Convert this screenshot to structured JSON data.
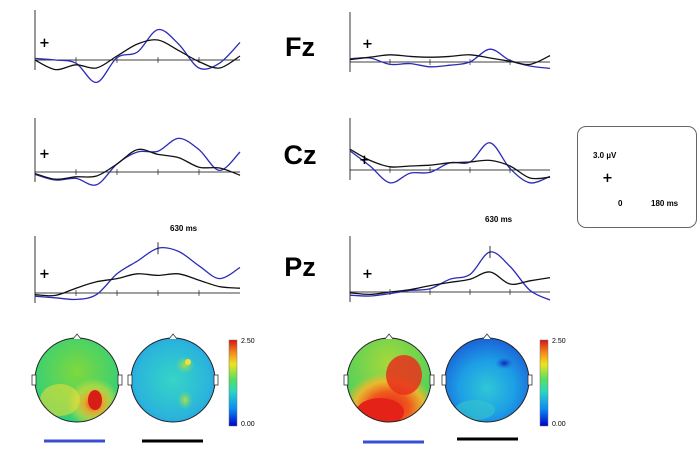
{
  "electrodes": [
    "Fz",
    "Cz",
    "Pz"
  ],
  "calibration": {
    "amplitude_label": "3.0 µV",
    "x_start": "0",
    "x_end": "180 ms",
    "marker": "+"
  },
  "annotations": {
    "left_peak": "630 ms",
    "right_peak": "630 ms"
  },
  "colorbar": {
    "left": {
      "max": "2.50",
      "min": "0.00"
    },
    "right": {
      "max": "2.50",
      "min": "0.00"
    }
  },
  "colors": {
    "blue_series": "#2b2bb8",
    "black_series": "#111111",
    "underline_blue": "#3a4fd0",
    "underline_black": "#000000"
  },
  "chart_data": [
    {
      "type": "line",
      "panel": "left",
      "electrode": "Fz",
      "x": [
        0,
        10,
        20,
        30,
        40,
        50,
        60,
        70,
        80,
        90,
        100
      ],
      "series": [
        {
          "color": "blue",
          "values": [
            0.2,
            0.0,
            -0.4,
            -2.8,
            0.3,
            1.0,
            3.8,
            2.0,
            -1.0,
            -0.4,
            2.2
          ]
        },
        {
          "color": "black",
          "values": [
            0.0,
            -1.2,
            -0.6,
            -1.0,
            0.5,
            2.0,
            2.5,
            1.2,
            -0.2,
            -1.0,
            0.5
          ]
        }
      ]
    },
    {
      "type": "line",
      "panel": "left",
      "electrode": "Cz",
      "x": [
        0,
        10,
        20,
        30,
        40,
        50,
        60,
        70,
        80,
        90,
        100
      ],
      "series": [
        {
          "color": "blue",
          "values": [
            -0.3,
            -1.0,
            -0.8,
            -1.6,
            1.0,
            2.5,
            2.6,
            4.2,
            2.8,
            0.2,
            2.5
          ]
        },
        {
          "color": "black",
          "values": [
            -0.2,
            -0.9,
            -0.6,
            -0.5,
            1.0,
            2.8,
            2.2,
            1.8,
            0.6,
            0.5,
            -0.4
          ]
        }
      ]
    },
    {
      "type": "line",
      "panel": "left",
      "electrode": "Pz",
      "x": [
        0,
        10,
        20,
        30,
        40,
        50,
        60,
        70,
        80,
        90,
        100
      ],
      "series": [
        {
          "color": "blue",
          "values": [
            -0.4,
            -0.6,
            -0.8,
            -0.2,
            2.4,
            4.0,
            5.6,
            5.2,
            3.4,
            1.8,
            3.2
          ]
        },
        {
          "color": "black",
          "values": [
            -0.2,
            -0.3,
            0.6,
            1.4,
            1.8,
            2.4,
            2.2,
            2.4,
            1.6,
            0.8,
            0.6
          ]
        }
      ]
    },
    {
      "type": "line",
      "panel": "right",
      "electrode": "Fz",
      "x": [
        0,
        10,
        20,
        30,
        40,
        50,
        60,
        70,
        80,
        90,
        100
      ],
      "series": [
        {
          "color": "blue",
          "values": [
            0.4,
            0.5,
            -0.3,
            -0.2,
            -0.6,
            -0.4,
            0.0,
            1.6,
            0.2,
            -0.5,
            -0.8
          ]
        },
        {
          "color": "black",
          "values": [
            0.3,
            0.6,
            0.9,
            0.7,
            0.6,
            0.7,
            0.9,
            0.5,
            0.1,
            -0.3,
            0.8
          ]
        }
      ]
    },
    {
      "type": "line",
      "panel": "right",
      "electrode": "Cz",
      "x": [
        0,
        10,
        20,
        30,
        40,
        50,
        60,
        70,
        80,
        90,
        100
      ],
      "series": [
        {
          "color": "blue",
          "values": [
            2.4,
            0.5,
            -1.6,
            -0.4,
            -0.3,
            0.9,
            1.0,
            3.4,
            0.2,
            -1.6,
            -0.8
          ]
        },
        {
          "color": "black",
          "values": [
            2.6,
            1.2,
            0.4,
            0.5,
            0.6,
            0.9,
            1.0,
            1.2,
            0.5,
            -1.0,
            -0.9
          ]
        }
      ]
    },
    {
      "type": "line",
      "panel": "right",
      "electrode": "Pz",
      "x": [
        0,
        10,
        20,
        30,
        40,
        50,
        60,
        70,
        80,
        90,
        100
      ],
      "series": [
        {
          "color": "blue",
          "values": [
            -0.4,
            -0.5,
            -0.2,
            0.2,
            0.4,
            1.6,
            2.2,
            5.0,
            3.2,
            0.2,
            -1.0
          ]
        },
        {
          "color": "black",
          "values": [
            -0.1,
            -0.3,
            0.0,
            0.3,
            0.8,
            1.2,
            1.6,
            2.5,
            1.0,
            1.4,
            1.8
          ]
        }
      ]
    }
  ]
}
